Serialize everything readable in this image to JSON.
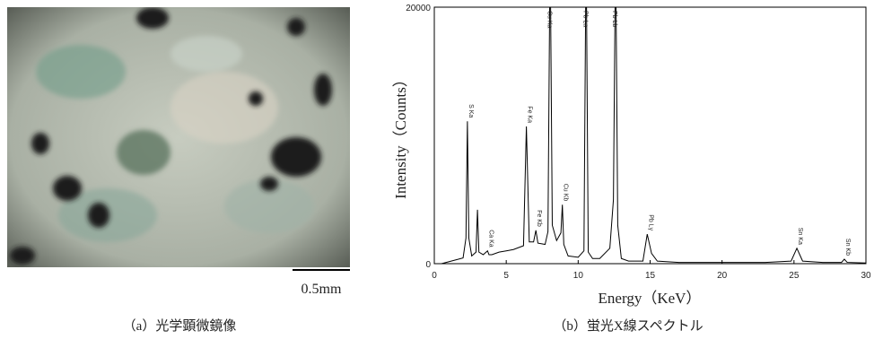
{
  "photo": {
    "scale_label": "0.5mm",
    "caption": "（a）光学顕微鏡像"
  },
  "chart_data": {
    "type": "line",
    "caption": "（b）蛍光X線スペクトル",
    "x_label": "Energy（KeV）",
    "y_label": "Intensity（Counts）",
    "xlim": [
      0,
      30
    ],
    "xticks": [
      0,
      5,
      10,
      15,
      20,
      25,
      30
    ],
    "ylim": [
      0,
      20000
    ],
    "yticks": [
      0,
      20000
    ],
    "series": [
      {
        "color": "#000000",
        "x": [
          0,
          0.5,
          1.0,
          1.5,
          2.0,
          2.2,
          2.3,
          2.4,
          2.6,
          2.9,
          3.0,
          3.1,
          3.4,
          3.7,
          3.8,
          4.0,
          4.5,
          5.0,
          5.5,
          6.2,
          6.4,
          6.6,
          6.9,
          7.06,
          7.2,
          7.7,
          7.9,
          8.05,
          8.2,
          8.5,
          8.8,
          8.9,
          9.0,
          9.3,
          10.0,
          10.4,
          10.55,
          10.7,
          11.0,
          11.5,
          12.2,
          12.45,
          12.6,
          12.75,
          13.0,
          13.5,
          14.5,
          14.8,
          15.1,
          15.5,
          17,
          19,
          21,
          23,
          24.8,
          25.2,
          25.6,
          27,
          28.3,
          28.5,
          28.7,
          30
        ],
        "values": [
          0,
          0,
          150,
          300,
          450,
          2000,
          11100,
          2000,
          600,
          900,
          4200,
          900,
          700,
          1000,
          700,
          700,
          900,
          1000,
          1100,
          1400,
          10700,
          1700,
          1700,
          2600,
          1600,
          1500,
          2500,
          25000,
          3000,
          1800,
          2400,
          4600,
          1500,
          600,
          500,
          1000,
          25000,
          900,
          400,
          400,
          1200,
          5000,
          25000,
          3000,
          400,
          200,
          200,
          2300,
          800,
          200,
          100,
          100,
          100,
          100,
          200,
          1200,
          200,
          100,
          100,
          350,
          100,
          50
        ]
      }
    ],
    "annotations": [
      {
        "text": "S Ka",
        "x": 2.3,
        "y": 11100
      },
      {
        "text": "Ca Ka",
        "x": 3.7,
        "y": 1000
      },
      {
        "text": "Fe Ka",
        "x": 6.4,
        "y": 10700
      },
      {
        "text": "Fe Kb",
        "x": 7.06,
        "y": 2600
      },
      {
        "text": "Cu Ka",
        "x": 7.75,
        "y": 20000
      },
      {
        "text": "Cu Kb",
        "x": 8.9,
        "y": 4600
      },
      {
        "text": "Pb La",
        "x": 10.25,
        "y": 20000
      },
      {
        "text": "Pb Lb",
        "x": 12.3,
        "y": 20000
      },
      {
        "text": "Pb Lγ",
        "x": 14.8,
        "y": 2300
      },
      {
        "text": "Sn Ka",
        "x": 25.2,
        "y": 1200
      },
      {
        "text": "Sn Kb",
        "x": 28.5,
        "y": 350
      }
    ]
  }
}
